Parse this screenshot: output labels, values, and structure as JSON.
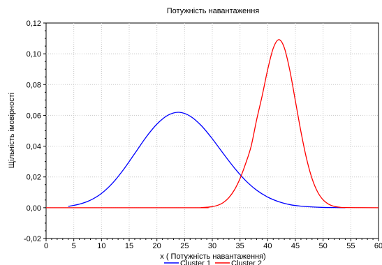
{
  "chart_data": {
    "type": "line",
    "title": "Потужність навантаження",
    "xlabel": "x  ( Потужність навантаження)",
    "ylabel": "Щільність імовірності",
    "xlim": [
      0,
      60
    ],
    "ylim": [
      -0.02,
      0.12
    ],
    "xticks": [
      0,
      5,
      10,
      15,
      20,
      25,
      30,
      35,
      40,
      45,
      50,
      55,
      60
    ],
    "xtick_labels": [
      "0",
      "5",
      "10",
      "15",
      "20",
      "25",
      "30",
      "35",
      "40",
      "45",
      "50",
      "55",
      "60"
    ],
    "yticks": [
      -0.02,
      0.0,
      0.02,
      0.04,
      0.06,
      0.08,
      0.1,
      0.12
    ],
    "ytick_labels": [
      "-0,02",
      "0,00",
      "0,02",
      "0,04",
      "0,06",
      "0,08",
      "0,10",
      "0,12"
    ],
    "grid": true,
    "legend_position": "bottom-center",
    "series": [
      {
        "name": "Cluster 1",
        "color": "#0000ff",
        "x": [
          4,
          6,
          8,
          10,
          12,
          14,
          16,
          18,
          20,
          22,
          24,
          26,
          28,
          30,
          32,
          34,
          36,
          38,
          40,
          42,
          44,
          46,
          48,
          50,
          52,
          54
        ],
        "y": [
          0.0009,
          0.0023,
          0.0049,
          0.0093,
          0.016,
          0.0249,
          0.0352,
          0.0456,
          0.0543,
          0.0601,
          0.062,
          0.0595,
          0.0534,
          0.0448,
          0.0351,
          0.0258,
          0.0177,
          0.0114,
          0.0069,
          0.0039,
          0.002,
          0.001,
          0.0005,
          0.0002,
          0.0001,
          0.0
        ]
      },
      {
        "name": "Cluster 2",
        "color": "#ff0000",
        "x": [
          0,
          27,
          28,
          29,
          30,
          31,
          32,
          33,
          34,
          35,
          36,
          37,
          38,
          39,
          40,
          41,
          42,
          43,
          44,
          45,
          46,
          47,
          48,
          49,
          50,
          51,
          52,
          53,
          54,
          60
        ],
        "y": [
          0.0,
          0.0,
          0.0001,
          0.0003,
          0.0007,
          0.0016,
          0.0034,
          0.0066,
          0.0116,
          0.0189,
          0.0285,
          0.0398,
          0.0571,
          0.0727,
          0.0898,
          0.1036,
          0.1092,
          0.1039,
          0.0891,
          0.0693,
          0.0494,
          0.0321,
          0.019,
          0.0103,
          0.0051,
          0.0023,
          0.0009,
          0.0003,
          0.0001,
          0.0
        ]
      }
    ]
  }
}
